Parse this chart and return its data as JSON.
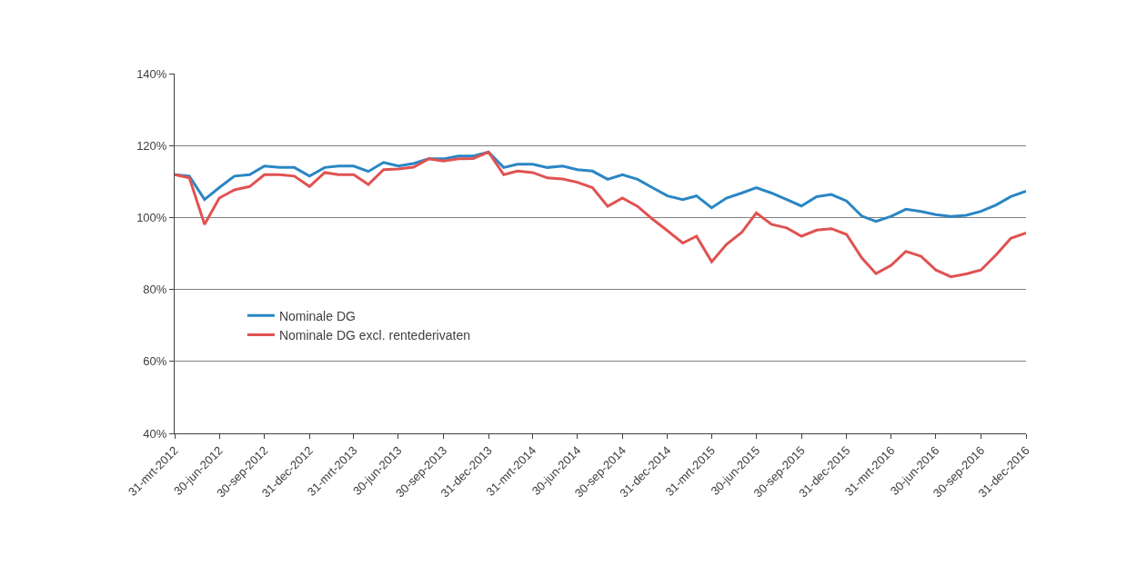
{
  "chart_data": {
    "type": "line",
    "x": [
      "2012-03-31",
      "2012-04-30",
      "2012-05-31",
      "2012-06-30",
      "2012-07-31",
      "2012-08-31",
      "2012-09-30",
      "2012-10-31",
      "2012-11-30",
      "2012-12-31",
      "2013-01-31",
      "2013-02-28",
      "2013-03-31",
      "2013-04-30",
      "2013-05-31",
      "2013-06-30",
      "2013-07-31",
      "2013-08-31",
      "2013-09-30",
      "2013-10-31",
      "2013-11-30",
      "2013-12-31",
      "2014-01-31",
      "2014-02-28",
      "2014-03-31",
      "2014-04-30",
      "2014-05-31",
      "2014-06-30",
      "2014-07-31",
      "2014-08-31",
      "2014-09-30",
      "2014-10-31",
      "2014-11-30",
      "2014-12-31",
      "2015-01-31",
      "2015-02-28",
      "2015-03-31",
      "2015-04-30",
      "2015-05-31",
      "2015-06-30",
      "2015-07-31",
      "2015-08-31",
      "2015-09-30",
      "2015-10-31",
      "2015-11-30",
      "2015-12-31",
      "2016-01-31",
      "2016-02-29",
      "2016-03-31",
      "2016-04-30",
      "2016-05-31",
      "2016-06-30",
      "2016-07-31",
      "2016-08-31",
      "2016-09-30",
      "2016-10-31",
      "2016-11-30",
      "2016-12-31"
    ],
    "series": [
      {
        "name": "Nominale DG",
        "color": "#2a86c4",
        "values": [
          111.9,
          111.5,
          105,
          108.3,
          111.5,
          111.9,
          114.3,
          113.9,
          113.9,
          111.5,
          113.9,
          114.3,
          114.3,
          112.8,
          115.3,
          114.3,
          115,
          116.3,
          116.3,
          117.1,
          117.1,
          118.2,
          113.9,
          114.8,
          114.8,
          113.9,
          114.3,
          113.3,
          112.9,
          110.6,
          111.9,
          110.6,
          108.3,
          106,
          105,
          106,
          102.7,
          105.4,
          106.8,
          108.3,
          106.8,
          105,
          103.2,
          105.8,
          106.4,
          104.6,
          100.4,
          98.9,
          100.3,
          102.3,
          101.7,
          100.8,
          100.3,
          100.6,
          101.7,
          103.5,
          105.8,
          107.3
        ]
      },
      {
        "name": "Nominale DG excl. rentederivaten",
        "color": "#e05252",
        "values": [
          111.9,
          111,
          98.1,
          105.4,
          107.7,
          108.6,
          111.9,
          111.9,
          111.5,
          108.6,
          112.5,
          111.9,
          111.9,
          109.2,
          113.3,
          113.5,
          114,
          116.3,
          115.7,
          116.3,
          116.4,
          118.2,
          111.9,
          112.9,
          112.5,
          111,
          110.7,
          109.8,
          108.3,
          103.1,
          105.4,
          103.1,
          99.6,
          96.3,
          92.9,
          94.8,
          87.7,
          92.5,
          95.8,
          101.3,
          98.1,
          97.1,
          94.8,
          96.5,
          96.9,
          95.3,
          88.8,
          84.4,
          86.7,
          90.6,
          89.2,
          85.4,
          83.5,
          84.3,
          85.4,
          89.6,
          94.2,
          95.7
        ]
      }
    ],
    "xlim": [
      "2012-03-31",
      "2016-12-31"
    ],
    "xticks": [
      {
        "value": "2012-03-31",
        "label": "31-mrt-2012"
      },
      {
        "value": "2012-06-30",
        "label": "30-jun-2012"
      },
      {
        "value": "2012-09-30",
        "label": "30-sep-2012"
      },
      {
        "value": "2012-12-31",
        "label": "31-dec-2012"
      },
      {
        "value": "2013-03-31",
        "label": "31-mrt-2013"
      },
      {
        "value": "2013-06-30",
        "label": "30-jun-2013"
      },
      {
        "value": "2013-09-30",
        "label": "30-sep-2013"
      },
      {
        "value": "2013-12-31",
        "label": "31-dec-2013"
      },
      {
        "value": "2014-03-31",
        "label": "31-mrt-2014"
      },
      {
        "value": "2014-06-30",
        "label": "30-jun-2014"
      },
      {
        "value": "2014-09-30",
        "label": "30-sep-2014"
      },
      {
        "value": "2014-12-31",
        "label": "31-dec-2014"
      },
      {
        "value": "2015-03-31",
        "label": "31-mrt-2015"
      },
      {
        "value": "2015-06-30",
        "label": "30-jun-2015"
      },
      {
        "value": "2015-09-30",
        "label": "30-sep-2015"
      },
      {
        "value": "2015-12-31",
        "label": "31-dec-2015"
      },
      {
        "value": "2016-03-31",
        "label": "31-mrt-2016"
      },
      {
        "value": "2016-06-30",
        "label": "30-jun-2016"
      },
      {
        "value": "2016-09-30",
        "label": "30-sep-2016"
      },
      {
        "value": "2016-12-31",
        "label": "31-dec-2016"
      }
    ],
    "ylim": [
      40,
      140
    ],
    "yticks": [
      {
        "value": 40,
        "label": "40%"
      },
      {
        "value": 60,
        "label": "60%"
      },
      {
        "value": 80,
        "label": "80%"
      },
      {
        "value": 100,
        "label": "100%"
      },
      {
        "value": 120,
        "label": "120%"
      },
      {
        "value": 140,
        "label": "140%"
      }
    ],
    "grid": "y",
    "legend": "left",
    "marker": "none",
    "line_style": "solid"
  }
}
